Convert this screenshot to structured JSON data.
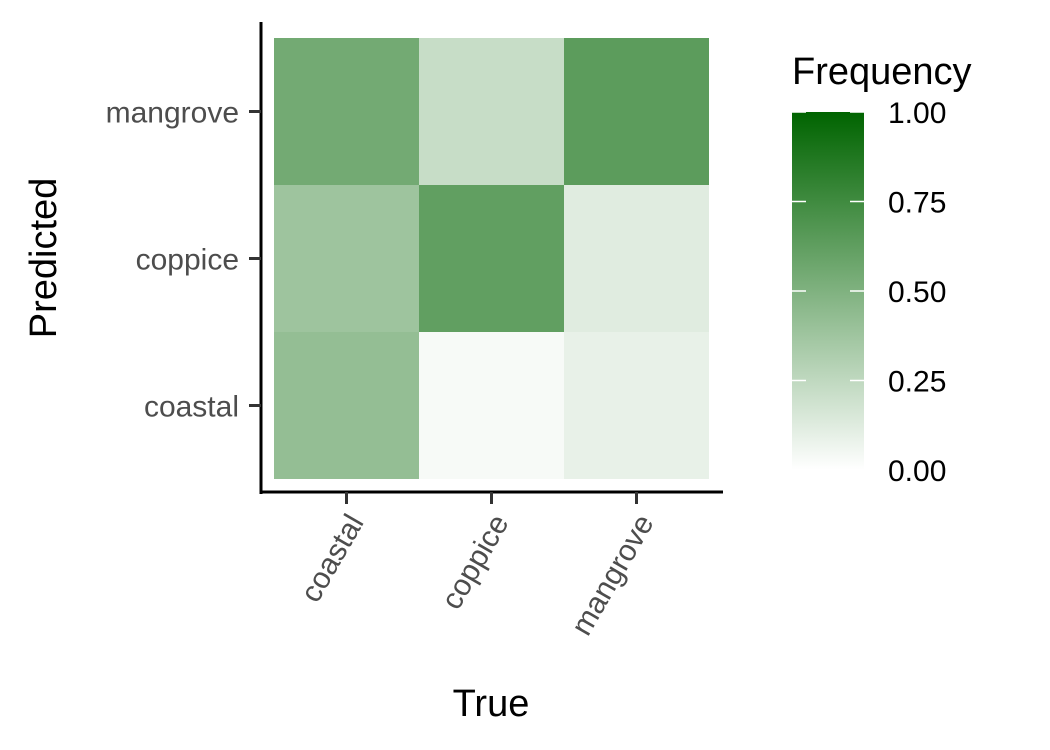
{
  "chart_data": {
    "type": "heatmap",
    "x_categories": [
      "coastal",
      "coppice",
      "mangrove"
    ],
    "y_categories": [
      "coastal",
      "coppice",
      "mangrove"
    ],
    "xlabel": "True",
    "ylabel": "Predicted",
    "cells": [
      {
        "x": "coastal",
        "y": "mangrove",
        "value": 0.55
      },
      {
        "x": "coppice",
        "y": "mangrove",
        "value": 0.22
      },
      {
        "x": "mangrove",
        "y": "mangrove",
        "value": 0.64
      },
      {
        "x": "coastal",
        "y": "coppice",
        "value": 0.38
      },
      {
        "x": "coppice",
        "y": "coppice",
        "value": 0.62
      },
      {
        "x": "mangrove",
        "y": "coppice",
        "value": 0.12
      },
      {
        "x": "coastal",
        "y": "coastal",
        "value": 0.42
      },
      {
        "x": "coppice",
        "y": "coastal",
        "value": 0.03
      },
      {
        "x": "mangrove",
        "y": "coastal",
        "value": 0.09
      }
    ],
    "legend": {
      "title": "Frequency",
      "ticks": [
        {
          "value": 1.0,
          "label": "1.00"
        },
        {
          "value": 0.75,
          "label": "0.75"
        },
        {
          "value": 0.5,
          "label": "0.50"
        },
        {
          "value": 0.25,
          "label": "0.25"
        },
        {
          "value": 0.0,
          "label": "0.00"
        }
      ],
      "color_low": "#ffffff",
      "color_high": "#006400",
      "placement": "right"
    },
    "grid": false
  }
}
